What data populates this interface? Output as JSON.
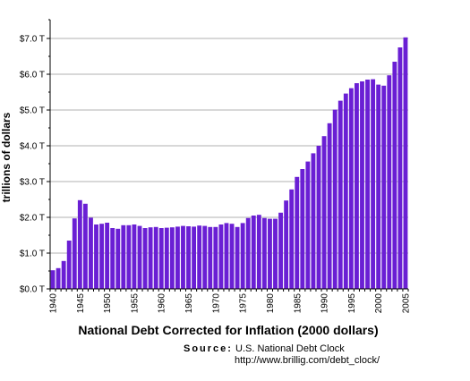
{
  "chart_data": {
    "type": "bar",
    "title": "National Debt Corrected for Inflation (2000 dollars)",
    "ylabel": "trillions of dollars",
    "xlabel": "",
    "ylim": [
      0,
      7.0
    ],
    "yticks": [
      "$0.0 T",
      "$1.0 T",
      "$2.0 T",
      "$3.0 T",
      "$4.0 T",
      "$5.0 T",
      "$6.0 T",
      "$7.0 T"
    ],
    "xticks": [
      "1940",
      "1945",
      "1950",
      "1955",
      "1960",
      "1965",
      "1970",
      "1975",
      "1980",
      "1985",
      "1990",
      "1995",
      "2000",
      "2005"
    ],
    "bar_color": "#6a1fd4",
    "grid": "horizontal",
    "x": [
      1940,
      1941,
      1942,
      1943,
      1944,
      1945,
      1946,
      1947,
      1948,
      1949,
      1950,
      1951,
      1952,
      1953,
      1954,
      1955,
      1956,
      1957,
      1958,
      1959,
      1960,
      1961,
      1962,
      1963,
      1964,
      1965,
      1966,
      1967,
      1968,
      1969,
      1970,
      1971,
      1972,
      1973,
      1974,
      1975,
      1976,
      1977,
      1978,
      1979,
      1980,
      1981,
      1982,
      1983,
      1984,
      1985,
      1986,
      1987,
      1988,
      1989,
      1990,
      1991,
      1992,
      1993,
      1994,
      1995,
      1996,
      1997,
      1998,
      1999,
      2000,
      2001,
      2002,
      2003,
      2004,
      2005
    ],
    "values": [
      0.52,
      0.58,
      0.78,
      1.35,
      1.97,
      2.48,
      2.38,
      1.99,
      1.8,
      1.82,
      1.85,
      1.7,
      1.68,
      1.78,
      1.78,
      1.8,
      1.76,
      1.7,
      1.72,
      1.73,
      1.7,
      1.71,
      1.72,
      1.74,
      1.76,
      1.75,
      1.74,
      1.77,
      1.76,
      1.73,
      1.73,
      1.8,
      1.84,
      1.82,
      1.73,
      1.84,
      1.98,
      2.05,
      2.07,
      1.98,
      1.96,
      1.96,
      2.13,
      2.47,
      2.78,
      3.13,
      3.35,
      3.56,
      3.79,
      4.0,
      4.27,
      4.63,
      5.01,
      5.26,
      5.46,
      5.61,
      5.75,
      5.8,
      5.85,
      5.86,
      5.71,
      5.68,
      5.97,
      6.35,
      6.75,
      7.03
    ]
  },
  "source": {
    "key": "Source:",
    "name": "U.S. National Debt Clock",
    "url": "http://www.brillig.com/debt_clock/"
  }
}
